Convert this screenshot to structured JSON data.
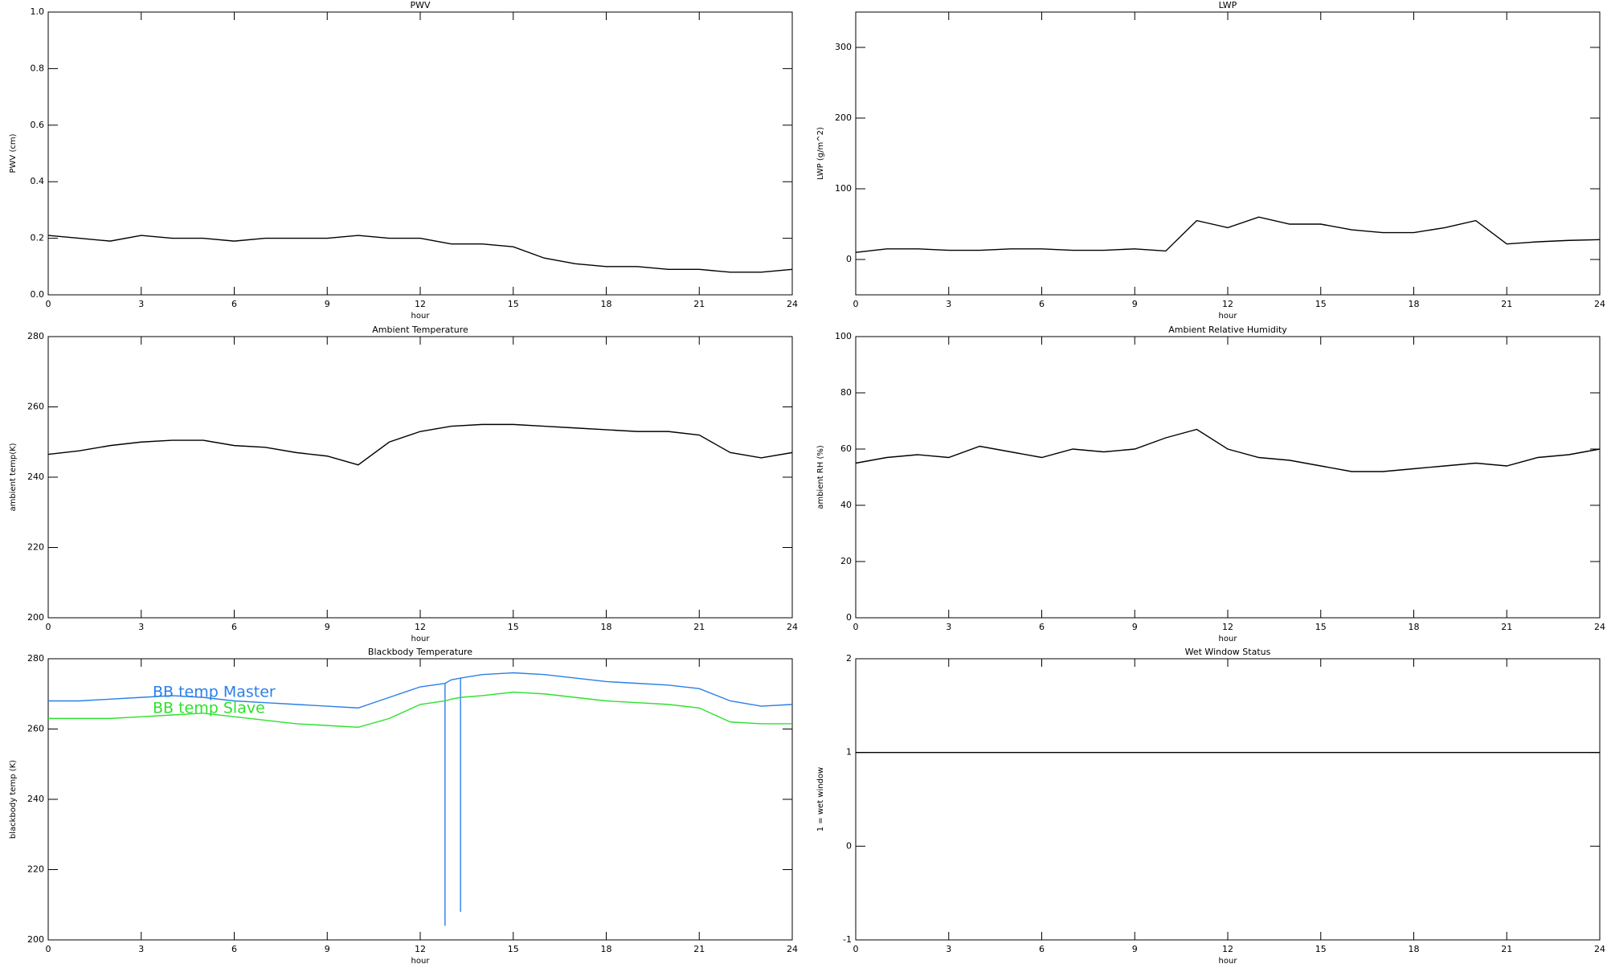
{
  "chart_data": [
    {
      "type": "line",
      "title": "PWV",
      "xlabel": "hour",
      "ylabel": "PWV (cm)",
      "x": [
        0,
        1,
        2,
        3,
        4,
        5,
        6,
        7,
        8,
        9,
        10,
        11,
        12,
        13,
        14,
        15,
        16,
        17,
        18,
        19,
        20,
        21,
        22,
        23,
        24
      ],
      "values": [
        0.21,
        0.2,
        0.19,
        0.21,
        0.2,
        0.2,
        0.19,
        0.2,
        0.2,
        0.2,
        0.21,
        0.2,
        0.2,
        0.18,
        0.18,
        0.17,
        0.13,
        0.11,
        0.1,
        0.1,
        0.09,
        0.09,
        0.08,
        0.08,
        0.09
      ],
      "color": "#000000",
      "xlim": [
        0,
        24
      ],
      "xticks": [
        0,
        3,
        6,
        9,
        12,
        15,
        18,
        21,
        24
      ],
      "ylim": [
        0,
        1
      ],
      "yticks": [
        {
          "value": 0,
          "label": "0.0"
        },
        0.2,
        0.4,
        0.6,
        0.8,
        {
          "value": 1,
          "label": "1.0"
        }
      ]
    },
    {
      "type": "line",
      "title": "LWP",
      "xlabel": "hour",
      "ylabel": "LWP (g/m^2)",
      "x": [
        0,
        1,
        2,
        3,
        4,
        5,
        6,
        7,
        8,
        9,
        10,
        11,
        12,
        13,
        14,
        15,
        16,
        17,
        18,
        19,
        20,
        21,
        22,
        23,
        24
      ],
      "values": [
        10,
        15,
        15,
        13,
        13,
        15,
        15,
        13,
        13,
        15,
        12,
        55,
        45,
        60,
        50,
        50,
        42,
        38,
        38,
        45,
        55,
        22,
        25,
        27,
        28
      ],
      "color": "#000000",
      "xlim": [
        0,
        24
      ],
      "xticks": [
        0,
        3,
        6,
        9,
        12,
        15,
        18,
        21,
        24
      ],
      "ylim": [
        -50,
        350
      ],
      "yticks": [
        0,
        100,
        200,
        300
      ]
    },
    {
      "type": "line",
      "title": "Ambient Temperature",
      "xlabel": "hour",
      "ylabel": "ambient temp(K)",
      "x": [
        0,
        1,
        2,
        3,
        4,
        5,
        6,
        7,
        8,
        9,
        10,
        11,
        12,
        13,
        14,
        15,
        16,
        17,
        18,
        19,
        20,
        21,
        22,
        23,
        24
      ],
      "values": [
        246.5,
        247.5,
        249,
        250,
        250.5,
        250.5,
        249,
        248.5,
        247,
        246,
        243.5,
        250,
        253,
        254.5,
        255,
        255,
        254.5,
        254,
        253.5,
        253,
        253,
        252,
        247,
        245.5,
        247
      ],
      "color": "#000000",
      "xlim": [
        0,
        24
      ],
      "xticks": [
        0,
        3,
        6,
        9,
        12,
        15,
        18,
        21,
        24
      ],
      "ylim": [
        200,
        280
      ],
      "yticks": [
        200,
        220,
        240,
        260,
        280
      ]
    },
    {
      "type": "line",
      "title": "Ambient Relative Humidity",
      "xlabel": "hour",
      "ylabel": "ambient RH (%)",
      "x": [
        0,
        1,
        2,
        3,
        4,
        5,
        6,
        7,
        8,
        9,
        10,
        11,
        12,
        13,
        14,
        15,
        16,
        17,
        18,
        19,
        20,
        21,
        22,
        23,
        24
      ],
      "values": [
        55,
        57,
        58,
        57,
        61,
        59,
        57,
        60,
        59,
        60,
        64,
        67,
        60,
        57,
        56,
        54,
        52,
        52,
        53,
        54,
        55,
        54,
        57,
        58,
        60
      ],
      "color": "#000000",
      "xlim": [
        0,
        24
      ],
      "xticks": [
        0,
        3,
        6,
        9,
        12,
        15,
        18,
        21,
        24
      ],
      "ylim": [
        0,
        100
      ],
      "yticks": [
        0,
        20,
        40,
        60,
        80,
        100
      ]
    },
    {
      "type": "line",
      "title": "Blackbody Temperature",
      "xlabel": "hour",
      "ylabel": "blackbody temp (K)",
      "x": [
        0,
        1,
        2,
        3,
        4,
        5,
        6,
        7,
        8,
        9,
        10,
        11,
        12,
        12.8,
        12.8,
        12.8,
        13,
        13.3,
        13.3,
        13.3,
        14,
        15,
        16,
        17,
        18,
        19,
        20,
        21,
        22,
        23,
        24
      ],
      "series": [
        {
          "name": "BB temp Master",
          "color": "#2a7fe8",
          "values": [
            268,
            268,
            268.5,
            269,
            269.5,
            269,
            268,
            267.5,
            267,
            266.5,
            266,
            269,
            272,
            273,
            204,
            273,
            274,
            274.5,
            208,
            274.5,
            275.5,
            276,
            275.5,
            274.5,
            273.5,
            273,
            272.5,
            271.5,
            268,
            266.5,
            267
          ]
        },
        {
          "name": "BB temp Slave",
          "color": "#2ee02e",
          "values": [
            263,
            263,
            263,
            263.5,
            264,
            264.5,
            263.5,
            262.5,
            261.5,
            261,
            260.5,
            263,
            267,
            268,
            268,
            268,
            268.5,
            269,
            269,
            269,
            269.5,
            270.5,
            270,
            269,
            268,
            267.5,
            267,
            266,
            262,
            261.5,
            261.5
          ]
        }
      ],
      "legend": "upper-left",
      "xlim": [
        0,
        24
      ],
      "xticks": [
        0,
        3,
        6,
        9,
        12,
        15,
        18,
        21,
        24
      ],
      "ylim": [
        200,
        280
      ],
      "yticks": [
        200,
        220,
        240,
        260,
        280
      ]
    },
    {
      "type": "line",
      "title": "Wet Window Status",
      "xlabel": "hour",
      "ylabel": "1 = wet window",
      "x": [
        0,
        24
      ],
      "values": [
        1,
        1
      ],
      "color": "#000000",
      "xlim": [
        0,
        24
      ],
      "xticks": [
        0,
        3,
        6,
        9,
        12,
        15,
        18,
        21,
        24
      ],
      "ylim": [
        -1,
        2
      ],
      "yticks": [
        -1,
        0,
        1,
        2
      ]
    }
  ]
}
